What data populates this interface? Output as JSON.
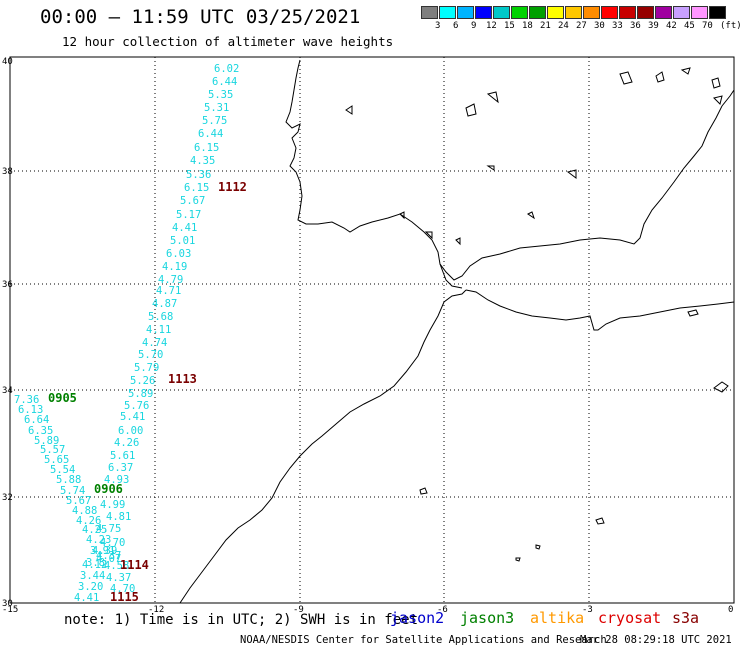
{
  "header": {
    "title": "00:00 – 11:59 UTC 03/25/2021",
    "subtitle": "12 hour collection of altimeter wave heights"
  },
  "legend": {
    "colors": [
      "#7f7f7f",
      "#00ffff",
      "#00b4ff",
      "#0000ff",
      "#00c8c8",
      "#00d200",
      "#00a000",
      "#ffff00",
      "#ffc800",
      "#ff8c00",
      "#ff0000",
      "#c80000",
      "#960000",
      "#a000a0",
      "#c8a0ff",
      "#ff96ff",
      "#000000"
    ],
    "labels": [
      "3",
      "6",
      "9",
      "12",
      "15",
      "18",
      "21",
      "24",
      "27",
      "30",
      "33",
      "36",
      "39",
      "42",
      "45",
      "70"
    ],
    "unit": "(ft)"
  },
  "axes": {
    "y_ticks": [
      "40",
      "38",
      "36",
      "34",
      "32",
      "30"
    ],
    "x_ticks": [
      "-15",
      "-12",
      "-9",
      "-6",
      "-3",
      "0"
    ]
  },
  "passes": [
    {
      "id": "1112",
      "color": "#7a0000"
    },
    {
      "id": "1113",
      "color": "#7a0000"
    },
    {
      "id": "0905",
      "color": "#008000"
    },
    {
      "id": "0906",
      "color": "#008000"
    },
    {
      "id": "1114",
      "color": "#7a0000"
    },
    {
      "id": "1115",
      "color": "#7a0000"
    }
  ],
  "track_a": [
    "6.02",
    "6.44",
    "5.35",
    "5.31",
    "5.75",
    "6.44",
    "6.15",
    "4.35",
    "5.36",
    "6.15",
    "5.67",
    "5.17",
    "4.41",
    "5.01",
    "6.03",
    "4.19",
    "4.79",
    "4.71",
    "4.87",
    "5.68",
    "4.11",
    "4.74",
    "5.70",
    "5.79",
    "5.26",
    "5.89",
    "5.76",
    "5.41",
    "6.00",
    "4.26",
    "5.61",
    "6.37",
    "4.93",
    "4.99",
    "4.81",
    "4.75",
    "4.70",
    "4.37",
    "4.39",
    "4.07",
    "4.58",
    "4.37",
    "4.70"
  ],
  "track_b": [
    "7.36",
    "6.13",
    "6.64",
    "6.35",
    "5.89",
    "5.57",
    "5.65",
    "5.54",
    "5.88",
    "5.74",
    "5.67",
    "4.88",
    "4.26",
    "4.25",
    "4.23",
    "3.91",
    "3.8",
    "4.12",
    "3.44",
    "3.20",
    "4.41"
  ],
  "footer": {
    "note": "note: 1) Time is in UTC; 2) SWH is in feet",
    "satellites": [
      {
        "name": "jason2",
        "color": "#0000cc"
      },
      {
        "name": "jason3",
        "color": "#008000"
      },
      {
        "name": "altika",
        "color": "#ff9900"
      },
      {
        "name": "cryosat",
        "color": "#dd0000"
      },
      {
        "name": "s3a",
        "color": "#880000"
      }
    ],
    "credit": "NOAA/NESDIS Center for Satellite Applications and Research",
    "timestamp": "Mar 28 08:29:18 UTC 2021"
  }
}
